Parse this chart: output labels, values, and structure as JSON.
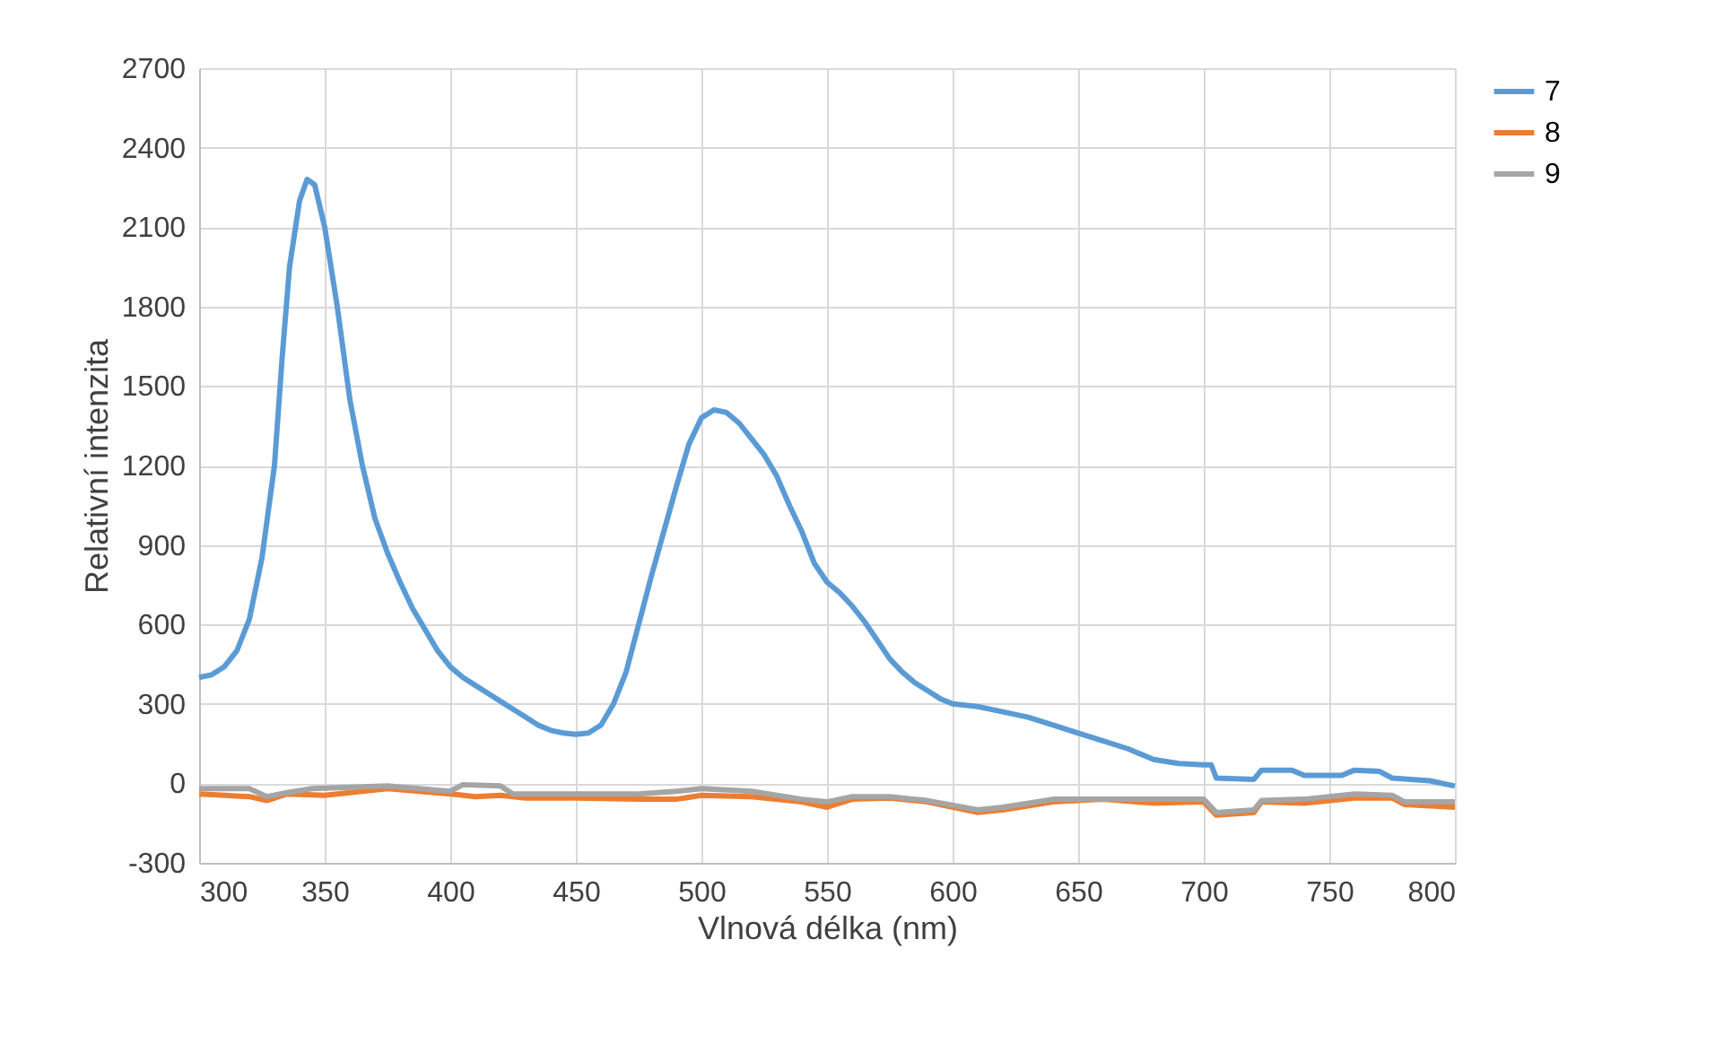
{
  "chart_data": {
    "type": "line",
    "xlabel": "Vlnová délka (nm)",
    "ylabel": "Relativní intenzita",
    "xlim": [
      300,
      800
    ],
    "xticks": [
      300,
      350,
      400,
      450,
      500,
      550,
      600,
      650,
      700,
      750,
      800
    ],
    "ylim": [
      -300,
      2700
    ],
    "yticks": [
      -300,
      0,
      300,
      600,
      900,
      1200,
      1500,
      1800,
      2100,
      2400,
      2700
    ],
    "grid": true,
    "legend": "right",
    "marker": "none",
    "line_style": "solid",
    "series": [
      {
        "name": "7",
        "color": "#5b9bd5",
        "x": [
          300,
          305,
          310,
          315,
          320,
          325,
          330,
          333,
          336,
          340,
          343,
          346,
          350,
          355,
          360,
          365,
          370,
          375,
          380,
          385,
          390,
          395,
          400,
          405,
          410,
          415,
          420,
          425,
          430,
          435,
          440,
          445,
          450,
          455,
          460,
          465,
          470,
          475,
          480,
          485,
          490,
          495,
          500,
          505,
          510,
          515,
          520,
          525,
          530,
          535,
          540,
          545,
          550,
          555,
          560,
          565,
          570,
          575,
          580,
          585,
          590,
          595,
          600,
          610,
          620,
          630,
          640,
          650,
          660,
          670,
          680,
          690,
          700,
          703,
          705,
          720,
          723,
          735,
          740,
          755,
          760,
          770,
          775,
          790,
          800
        ],
        "values": [
          400,
          410,
          440,
          500,
          620,
          850,
          1200,
          1600,
          1950,
          2200,
          2280,
          2260,
          2100,
          1800,
          1450,
          1200,
          1000,
          870,
          760,
          660,
          580,
          500,
          440,
          400,
          370,
          340,
          310,
          280,
          250,
          220,
          200,
          190,
          185,
          190,
          220,
          300,
          420,
          600,
          780,
          950,
          1120,
          1280,
          1380,
          1410,
          1400,
          1360,
          1300,
          1240,
          1160,
          1050,
          950,
          830,
          760,
          720,
          670,
          610,
          540,
          470,
          420,
          380,
          350,
          320,
          300,
          290,
          270,
          250,
          220,
          190,
          160,
          130,
          90,
          75,
          70,
          70,
          20,
          15,
          50,
          50,
          30,
          30,
          50,
          45,
          20,
          10,
          -10
        ]
      },
      {
        "name": "8",
        "color": "#ed7d31",
        "x": [
          300,
          320,
          327,
          335,
          350,
          375,
          400,
          410,
          420,
          430,
          450,
          475,
          490,
          500,
          520,
          540,
          550,
          560,
          575,
          590,
          610,
          620,
          640,
          660,
          680,
          700,
          705,
          720,
          723,
          740,
          760,
          775,
          780,
          800
        ],
        "values": [
          -40,
          -50,
          -65,
          -40,
          -45,
          -20,
          -40,
          -50,
          -45,
          -55,
          -55,
          -60,
          -60,
          -45,
          -50,
          -70,
          -90,
          -60,
          -55,
          -70,
          -110,
          -100,
          -70,
          -60,
          -75,
          -70,
          -120,
          -110,
          -70,
          -75,
          -55,
          -55,
          -80,
          -90
        ]
      },
      {
        "name": "9",
        "color": "#a5a5a5",
        "x": [
          300,
          320,
          327,
          335,
          345,
          375,
          400,
          405,
          420,
          425,
          450,
          475,
          490,
          500,
          520,
          540,
          550,
          560,
          575,
          590,
          610,
          620,
          640,
          660,
          680,
          700,
          705,
          720,
          723,
          740,
          760,
          775,
          780,
          800
        ],
        "values": [
          -20,
          -20,
          -50,
          -35,
          -20,
          -10,
          -30,
          -5,
          -10,
          -40,
          -40,
          -40,
          -30,
          -20,
          -30,
          -60,
          -70,
          -50,
          -50,
          -65,
          -100,
          -90,
          -60,
          -60,
          -60,
          -60,
          -110,
          -100,
          -65,
          -60,
          -40,
          -45,
          -70,
          -70
        ]
      }
    ]
  }
}
